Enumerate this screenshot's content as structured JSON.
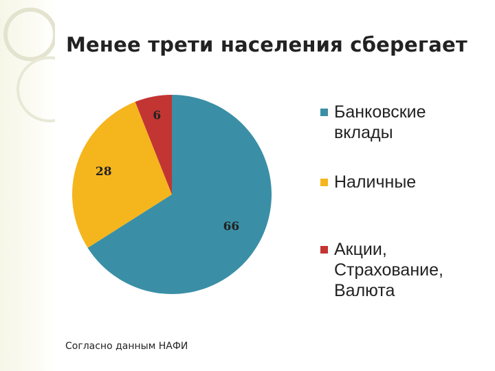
{
  "chart_data": {
    "type": "pie",
    "title": "Менее трети населения сберегает",
    "categories": [
      "Банковские\nвклады",
      "Наличные",
      "Акции,\nСтрахование,\nВалюта"
    ],
    "values": [
      66,
      28,
      6
    ],
    "data_labels": [
      "66",
      "28",
      "6"
    ],
    "colors": [
      "#3a8fa6",
      "#f5b51d",
      "#c23533"
    ],
    "legend_position": "right",
    "start_angle_deg": 0,
    "direction": "clockwise"
  },
  "footnote": "Согласно данным НАФИ"
}
